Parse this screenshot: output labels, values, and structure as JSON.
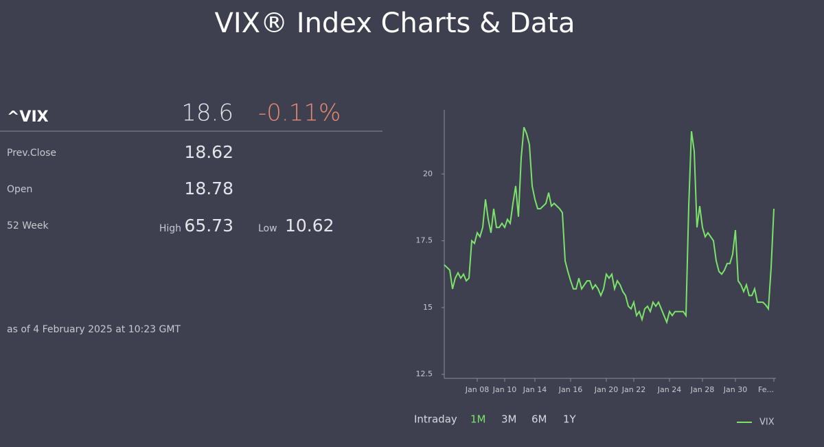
{
  "title": "VIX® Index Charts & Data",
  "quote": {
    "symbol": "^VIX",
    "price": "18.6",
    "change": "-0.11%",
    "prev_close_label": "Prev.Close",
    "prev_close": "18.62",
    "open_label": "Open",
    "open": "18.78",
    "week52_label": "52 Week",
    "high_label": "High",
    "high": "65.73",
    "low_label": "Low",
    "low": "10.62",
    "as_of": "as of 4 February 2025 at 10:23 GMT"
  },
  "ranges": [
    "Intraday",
    "1M",
    "3M",
    "6M",
    "1Y"
  ],
  "chart_data": {
    "type": "line",
    "categories": [
      null,
      null,
      null,
      null,
      null,
      null,
      null,
      null,
      null,
      null,
      null,
      null,
      "Jan 08",
      null,
      null,
      null,
      null,
      null,
      null,
      null,
      null,
      null,
      "Jan 10",
      null,
      null,
      null,
      null,
      null,
      null,
      null,
      null,
      null,
      null,
      "Jan 14",
      null,
      null,
      null,
      null,
      null,
      null,
      null,
      null,
      null,
      null,
      null,
      null,
      "Jan 16",
      null,
      null,
      null,
      null,
      null,
      null,
      null,
      null,
      null,
      null,
      null,
      null,
      "Jan 20",
      null,
      null,
      null,
      null,
      null,
      null,
      null,
      null,
      null,
      "Jan 22",
      null,
      null,
      null,
      null,
      null,
      null,
      null,
      null,
      null,
      null,
      null,
      null,
      "Jan 24",
      null,
      null,
      null,
      null,
      null,
      null,
      null,
      null,
      null,
      null,
      null,
      "Jan 28",
      null,
      null,
      null,
      null,
      null,
      null,
      null,
      null,
      null,
      null,
      null,
      "Jan 30",
      null,
      null,
      null,
      null,
      null,
      null,
      null,
      null,
      null,
      null,
      null,
      null,
      null,
      "Fe..."
    ],
    "series": [
      {
        "name": "VIX",
        "color": "#7be36a",
        "values": [
          16.6,
          16.5,
          16.4,
          15.7,
          16.1,
          16.3,
          16.1,
          16.25,
          16.0,
          16.1,
          17.5,
          17.4,
          17.8,
          17.65,
          18.0,
          19.05,
          18.3,
          17.8,
          18.7,
          18.0,
          18.0,
          18.15,
          18.0,
          18.3,
          18.15,
          18.9,
          19.55,
          18.4,
          20.6,
          21.75,
          21.5,
          21.1,
          19.55,
          19.05,
          18.7,
          18.7,
          18.8,
          18.9,
          19.3,
          18.8,
          18.9,
          18.8,
          18.7,
          18.55,
          16.75,
          16.35,
          16.0,
          15.7,
          15.7,
          16.1,
          15.7,
          15.85,
          16.0,
          16.0,
          15.7,
          15.85,
          15.7,
          15.45,
          15.7,
          16.25,
          16.1,
          16.25,
          15.7,
          16.0,
          15.85,
          15.6,
          15.45,
          15.05,
          14.95,
          15.2,
          14.7,
          14.85,
          14.55,
          14.95,
          15.05,
          14.85,
          15.2,
          15.05,
          15.2,
          14.95,
          14.7,
          14.45,
          14.85,
          14.7,
          14.85,
          14.85,
          14.85,
          14.85,
          14.7,
          18.8,
          21.6,
          20.85,
          18.0,
          18.8,
          18.0,
          17.65,
          17.8,
          17.65,
          17.5,
          16.75,
          16.35,
          16.25,
          16.4,
          16.65,
          16.65,
          17.0,
          17.9,
          16.0,
          15.85,
          15.6,
          15.85,
          15.45,
          15.45,
          15.7,
          15.2,
          15.2,
          15.2,
          15.1,
          14.95,
          16.5,
          18.7
        ]
      }
    ],
    "ylim": [
      12.35,
      22.4
    ],
    "yticks": [
      12.5,
      15,
      17.5,
      20
    ]
  }
}
